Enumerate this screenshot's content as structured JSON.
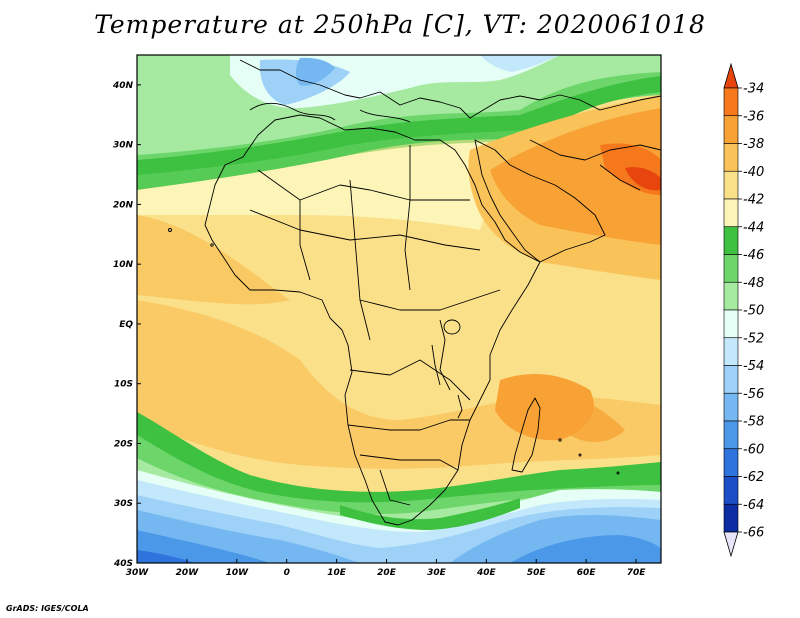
{
  "title": "Temperature at 250hPa [C], VT: 2020061018",
  "credit": "GrADS: IGES/COLA",
  "map": {
    "lon_range": [
      -30,
      75
    ],
    "lat_range": [
      -40,
      45
    ],
    "x_ticks": [
      {
        "lon": -30,
        "label": "30W"
      },
      {
        "lon": -20,
        "label": "20W"
      },
      {
        "lon": -10,
        "label": "10W"
      },
      {
        "lon": 0,
        "label": "0"
      },
      {
        "lon": 10,
        "label": "10E"
      },
      {
        "lon": 20,
        "label": "20E"
      },
      {
        "lon": 30,
        "label": "30E"
      },
      {
        "lon": 40,
        "label": "40E"
      },
      {
        "lon": 50,
        "label": "50E"
      },
      {
        "lon": 60,
        "label": "60E"
      },
      {
        "lon": 70,
        "label": "70E"
      }
    ],
    "y_ticks": [
      {
        "lat": 40,
        "label": "40N"
      },
      {
        "lat": 30,
        "label": "30N"
      },
      {
        "lat": 20,
        "label": "20N"
      },
      {
        "lat": 10,
        "label": "10N"
      },
      {
        "lat": 0,
        "label": "EQ"
      },
      {
        "lat": -10,
        "label": "10S"
      },
      {
        "lat": -20,
        "label": "20S"
      },
      {
        "lat": -30,
        "label": "30S"
      },
      {
        "lat": -40,
        "label": "40S"
      }
    ]
  },
  "colorbar": {
    "levels": [
      "-34",
      "-36",
      "-38",
      "-40",
      "-42",
      "-44",
      "-46",
      "-48",
      "-50",
      "-52",
      "-54",
      "-56",
      "-58",
      "-60",
      "-62",
      "-64",
      "-66"
    ],
    "colors": [
      "#e8440e",
      "#f5781c",
      "#f8a236",
      "#f9c35a",
      "#fbe08a",
      "#fdf5b8",
      "#3ec040",
      "#6dd66a",
      "#a5eaa0",
      "#e6fff6",
      "#c3e8fc",
      "#9dd1f7",
      "#75b8f1",
      "#4c98e8",
      "#2f73dc",
      "#1c4ec8",
      "#0d2da2",
      "#081570"
    ]
  }
}
